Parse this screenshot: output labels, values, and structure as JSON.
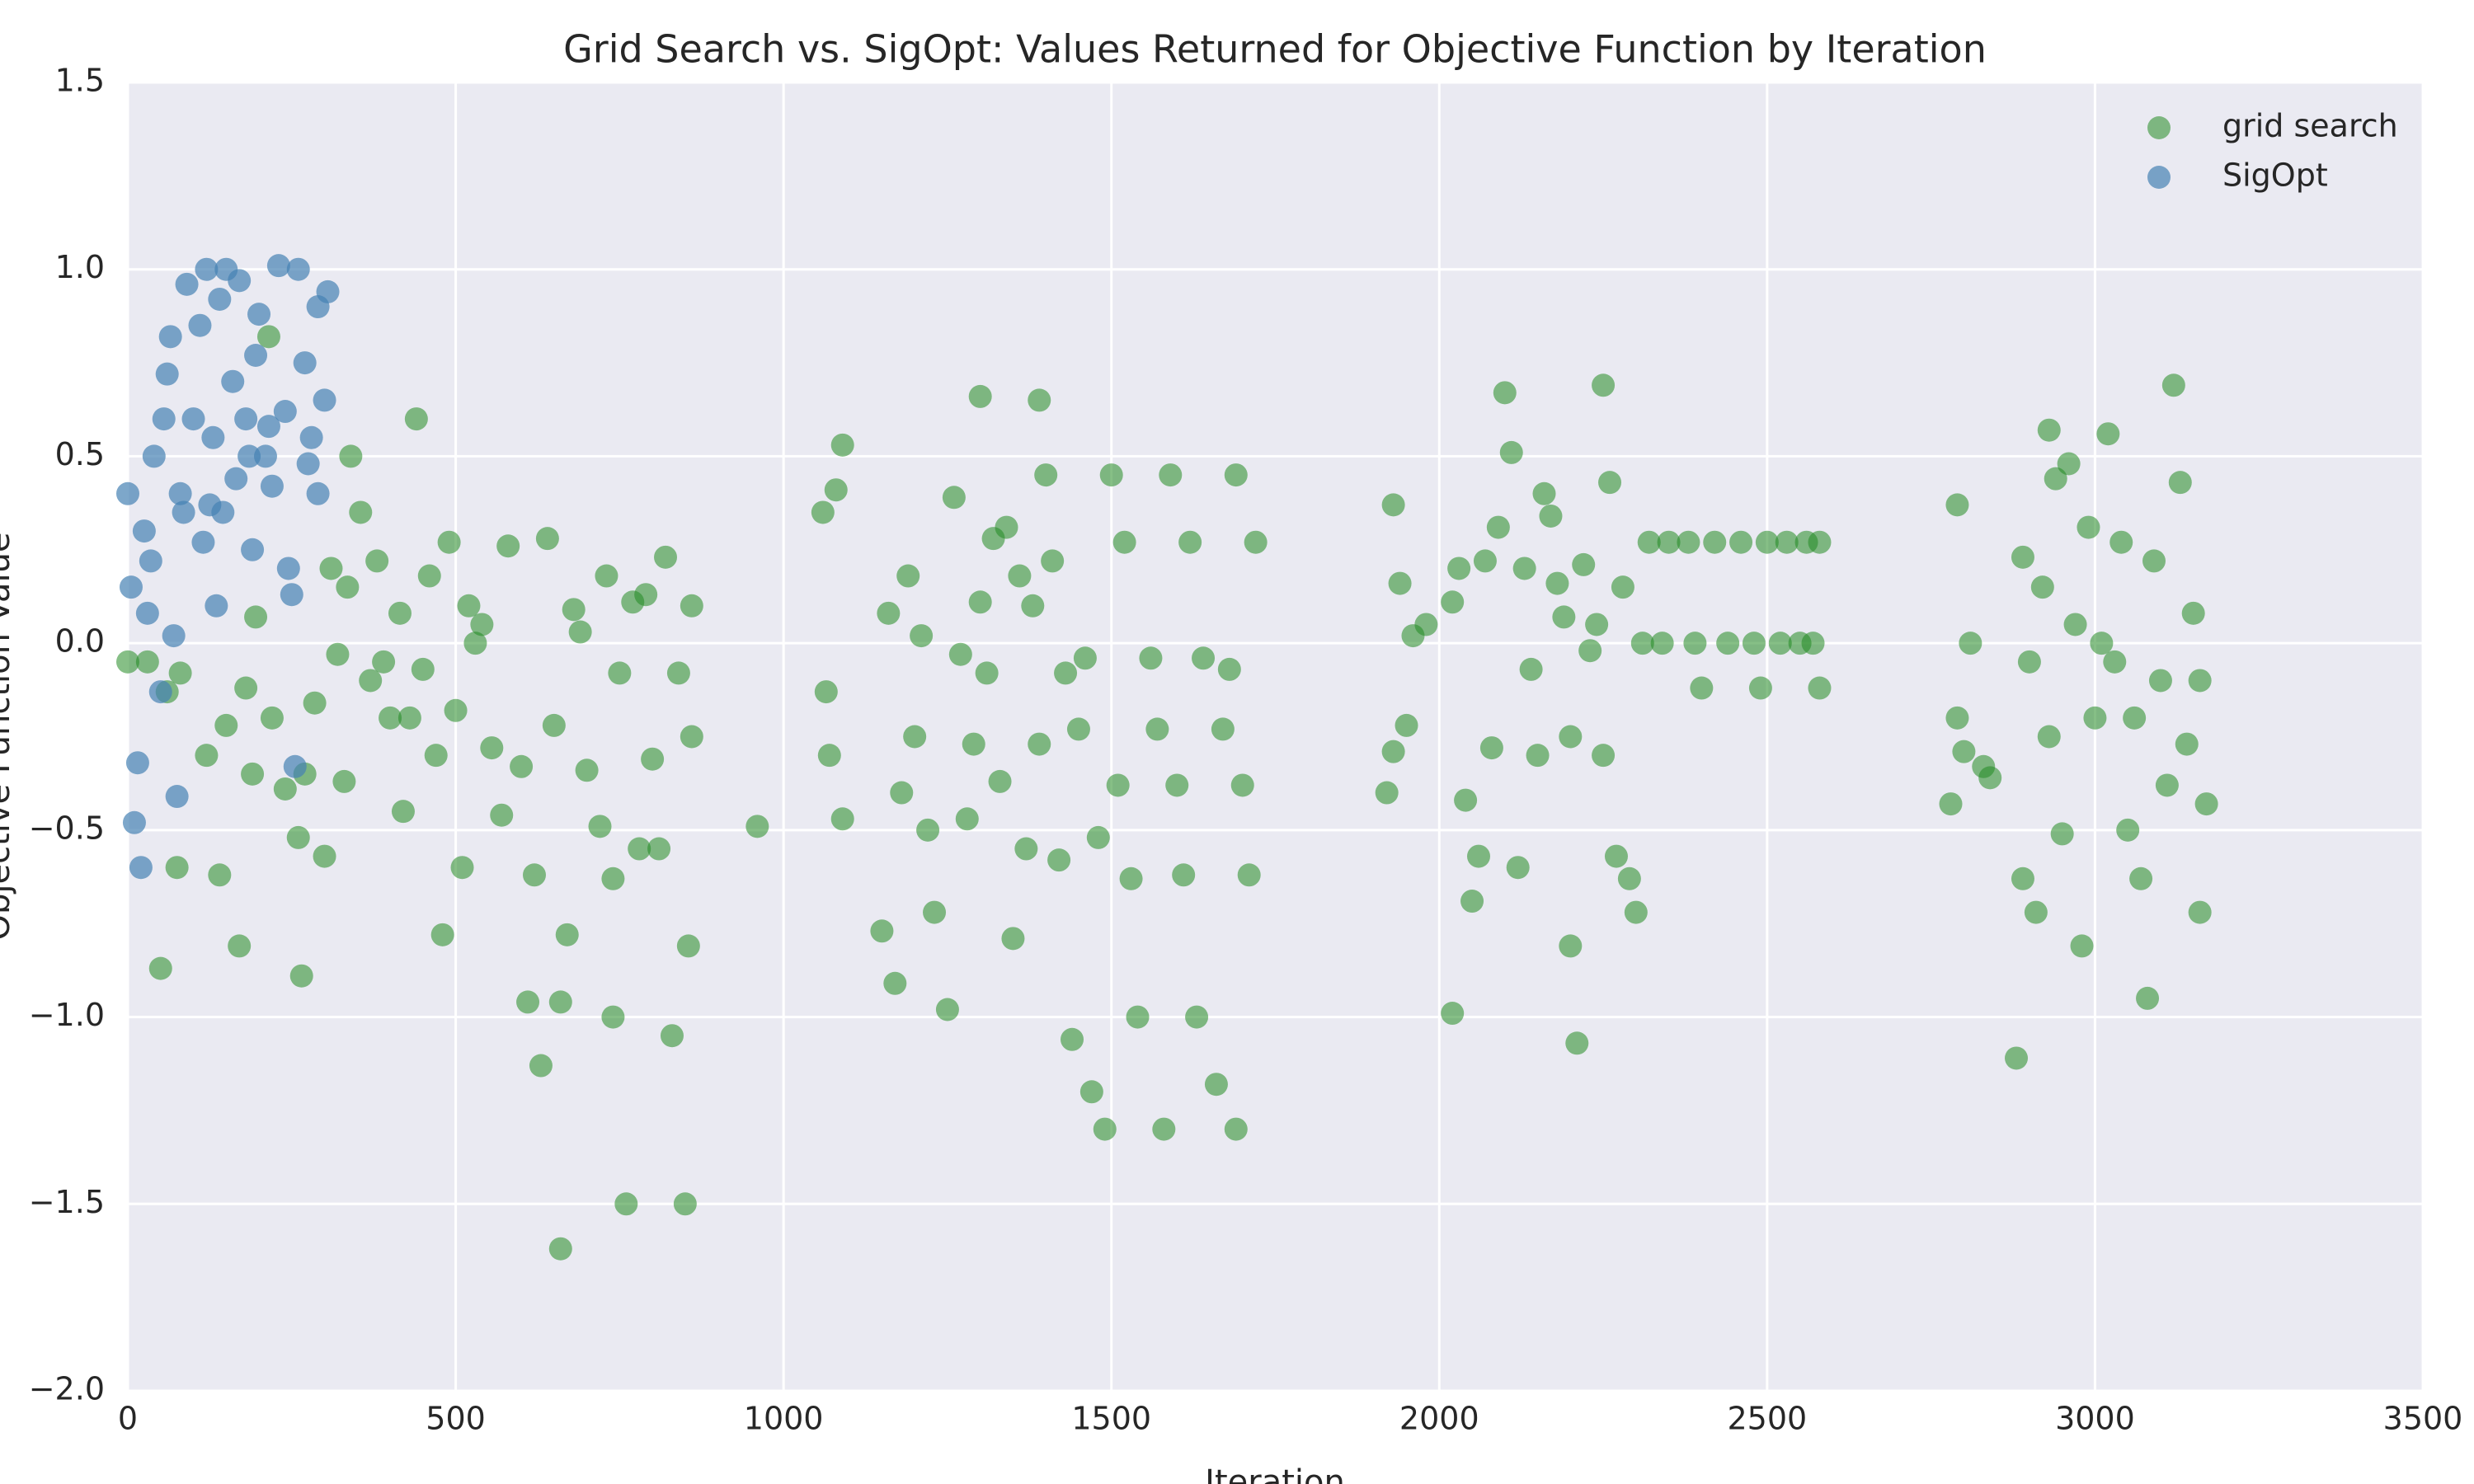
{
  "chart_data": {
    "type": "scatter",
    "title": "Grid Search vs. SigOpt: Values Returned for Objective Function by Iteration",
    "xlabel": "Iteration",
    "ylabel": "Objective Function Value",
    "xlim": [
      0,
      3500
    ],
    "ylim": [
      -2.0,
      1.5
    ],
    "xticks": [
      0,
      500,
      1000,
      1500,
      2000,
      2500,
      3000,
      3500
    ],
    "yticks": [
      {
        "value": -2.0,
        "label": "−2.0"
      },
      {
        "value": -1.5,
        "label": "−1.5"
      },
      {
        "value": -1.0,
        "label": "−1.0"
      },
      {
        "value": -0.5,
        "label": "−0.5"
      },
      {
        "value": 0.0,
        "label": "0.0"
      },
      {
        "value": 0.5,
        "label": "0.5"
      },
      {
        "value": 1.0,
        "label": "1.0"
      },
      {
        "value": 1.5,
        "label": "1.5"
      }
    ],
    "grid": true,
    "legend": "upper right",
    "series": [
      {
        "name": "grid search",
        "color": "#228b22",
        "x": [
          0,
          30,
          50,
          60,
          75,
          80,
          120,
          140,
          150,
          170,
          180,
          190,
          195,
          215,
          220,
          240,
          260,
          265,
          270,
          285,
          300,
          310,
          320,
          330,
          335,
          340,
          355,
          370,
          380,
          390,
          400,
          415,
          420,
          430,
          440,
          450,
          460,
          470,
          480,
          490,
          500,
          510,
          520,
          530,
          540,
          555,
          570,
          580,
          600,
          610,
          620,
          630,
          640,
          650,
          660,
          670,
          680,
          690,
          700,
          720,
          730,
          740,
          750,
          760,
          770,
          780,
          790,
          800,
          810,
          820,
          830,
          840,
          850,
          855,
          860,
          860,
          740,
          660,
          960,
          1060,
          1065,
          1070,
          1080,
          1090,
          1090,
          1150,
          1160,
          1170,
          1180,
          1190,
          1200,
          1210,
          1220,
          1230,
          1250,
          1260,
          1270,
          1280,
          1290,
          1300,
          1310,
          1320,
          1330,
          1340,
          1350,
          1360,
          1370,
          1380,
          1390,
          1400,
          1410,
          1420,
          1430,
          1440,
          1450,
          1460,
          1470,
          1480,
          1490,
          1500,
          1510,
          1520,
          1530,
          1540,
          1560,
          1570,
          1580,
          1590,
          1600,
          1610,
          1620,
          1630,
          1640,
          1660,
          1670,
          1680,
          1690,
          1690,
          1700,
          1710,
          1720,
          1300,
          1390,
          1920,
          1930,
          1930,
          1940,
          1950,
          1960,
          1980,
          2020,
          2020,
          2030,
          2040,
          2050,
          2060,
          2070,
          2080,
          2090,
          2100,
          2110,
          2120,
          2130,
          2140,
          2150,
          2160,
          2170,
          2180,
          2190,
          2200,
          2210,
          2220,
          2230,
          2240,
          2250,
          2260,
          2270,
          2280,
          2290,
          2300,
          2310,
          2320,
          2340,
          2350,
          2380,
          2390,
          2400,
          2420,
          2440,
          2460,
          2480,
          2490,
          2500,
          2520,
          2530,
          2550,
          2560,
          2570,
          2580,
          2580,
          2250,
          2200,
          2780,
          2790,
          2790,
          2800,
          2810,
          2830,
          2840,
          2880,
          2890,
          2890,
          2900,
          2910,
          2920,
          2930,
          2930,
          2940,
          2950,
          2960,
          2970,
          2980,
          2990,
          3000,
          3010,
          3020,
          3030,
          3040,
          3050,
          3060,
          3070,
          3080,
          3090,
          3100,
          3110,
          3120,
          3130,
          3140,
          3150,
          3160,
          3160,
          3170
        ],
        "values": [
          -0.05,
          -0.05,
          -0.87,
          -0.13,
          -0.6,
          -0.08,
          -0.3,
          -0.62,
          -0.22,
          -0.81,
          -0.12,
          -0.35,
          0.07,
          0.82,
          -0.2,
          -0.39,
          -0.52,
          -0.89,
          -0.35,
          -0.16,
          -0.57,
          0.2,
          -0.03,
          -0.37,
          0.15,
          0.5,
          0.35,
          -0.1,
          0.22,
          -0.05,
          -0.2,
          0.08,
          -0.45,
          -0.2,
          0.6,
          -0.07,
          0.18,
          -0.3,
          -0.78,
          0.27,
          -0.18,
          -0.6,
          0.1,
          0.0,
          0.05,
          -0.28,
          -0.46,
          0.26,
          -0.33,
          -0.96,
          -0.62,
          -1.13,
          0.28,
          -0.22,
          -1.62,
          -0.78,
          0.09,
          0.03,
          -0.34,
          -0.49,
          0.18,
          -0.63,
          -0.08,
          -1.5,
          0.11,
          -0.55,
          0.13,
          -0.31,
          -0.55,
          0.23,
          -1.05,
          -0.08,
          -1.5,
          -0.81,
          0.1,
          -0.25,
          -1.0,
          -0.96,
          -0.49,
          0.35,
          -0.13,
          -0.3,
          0.41,
          0.53,
          -0.47,
          -0.77,
          0.08,
          -0.91,
          -0.4,
          0.18,
          -0.25,
          0.02,
          -0.5,
          -0.72,
          -0.98,
          0.39,
          -0.03,
          -0.47,
          -0.27,
          0.11,
          -0.08,
          0.28,
          -0.37,
          0.31,
          -0.79,
          0.18,
          -0.55,
          0.1,
          -0.27,
          0.45,
          0.22,
          -0.58,
          -0.08,
          -1.06,
          -0.23,
          -0.04,
          -1.2,
          -0.52,
          -1.3,
          0.45,
          -0.38,
          0.27,
          -0.63,
          -1.0,
          -0.04,
          -0.23,
          -1.3,
          0.45,
          -0.38,
          -0.62,
          0.27,
          -1.0,
          -0.04,
          -1.18,
          -0.23,
          -0.07,
          -1.3,
          0.45,
          -0.38,
          -0.62,
          0.27,
          0.66,
          0.65,
          -0.4,
          0.37,
          -0.29,
          0.16,
          -0.22,
          0.02,
          0.05,
          -0.99,
          0.11,
          0.2,
          -0.42,
          -0.69,
          -0.57,
          0.22,
          -0.28,
          0.31,
          0.67,
          0.51,
          -0.6,
          0.2,
          -0.07,
          -0.3,
          0.4,
          0.34,
          0.16,
          0.07,
          -0.25,
          -1.07,
          0.21,
          -0.02,
          0.05,
          -0.3,
          0.43,
          -0.57,
          0.15,
          -0.63,
          -0.72,
          0.0,
          0.27,
          0.0,
          0.27,
          0.27,
          0.0,
          -0.12,
          0.27,
          0.0,
          0.27,
          0.0,
          -0.12,
          0.27,
          0.0,
          0.27,
          0.0,
          0.27,
          0.0,
          -0.12,
          0.27,
          0.69,
          -0.81,
          -0.43,
          0.37,
          -0.2,
          -0.29,
          0.0,
          -0.33,
          -0.36,
          -1.11,
          0.23,
          -0.63,
          -0.05,
          -0.72,
          0.15,
          0.57,
          -0.25,
          0.44,
          -0.51,
          0.48,
          0.05,
          -0.81,
          0.31,
          -0.2,
          0.0,
          0.56,
          -0.05,
          0.27,
          -0.5,
          -0.2,
          -0.63,
          -0.95,
          0.22,
          -0.1,
          -0.38,
          0.69,
          0.43,
          -0.27,
          0.08,
          -0.72,
          -0.1,
          -0.43
        ]
      },
      {
        "name": "SigOpt",
        "color": "#4682b4",
        "x": [
          0,
          5,
          10,
          15,
          20,
          25,
          30,
          40,
          50,
          60,
          65,
          70,
          75,
          80,
          90,
          100,
          110,
          115,
          120,
          130,
          140,
          145,
          150,
          160,
          165,
          170,
          180,
          190,
          200,
          210,
          220,
          230,
          240,
          250,
          255,
          260,
          270,
          280,
          290,
          300,
          305,
          290,
          195,
          125,
          55,
          35,
          135,
          215,
          185,
          85,
          245,
          275
        ],
        "values": [
          0.4,
          0.15,
          -0.48,
          -0.32,
          -0.6,
          0.3,
          0.08,
          0.5,
          -0.13,
          0.72,
          0.82,
          0.02,
          -0.41,
          0.4,
          0.96,
          0.6,
          0.85,
          0.27,
          1.0,
          0.55,
          0.92,
          0.35,
          1.0,
          0.7,
          0.44,
          0.97,
          0.6,
          0.25,
          0.88,
          0.5,
          0.42,
          1.01,
          0.62,
          0.13,
          -0.33,
          1.0,
          0.75,
          0.55,
          0.9,
          0.65,
          0.94,
          0.4,
          0.77,
          0.37,
          0.6,
          0.22,
          0.1,
          0.58,
          0.5,
          0.35,
          0.2,
          0.48
        ]
      }
    ]
  }
}
